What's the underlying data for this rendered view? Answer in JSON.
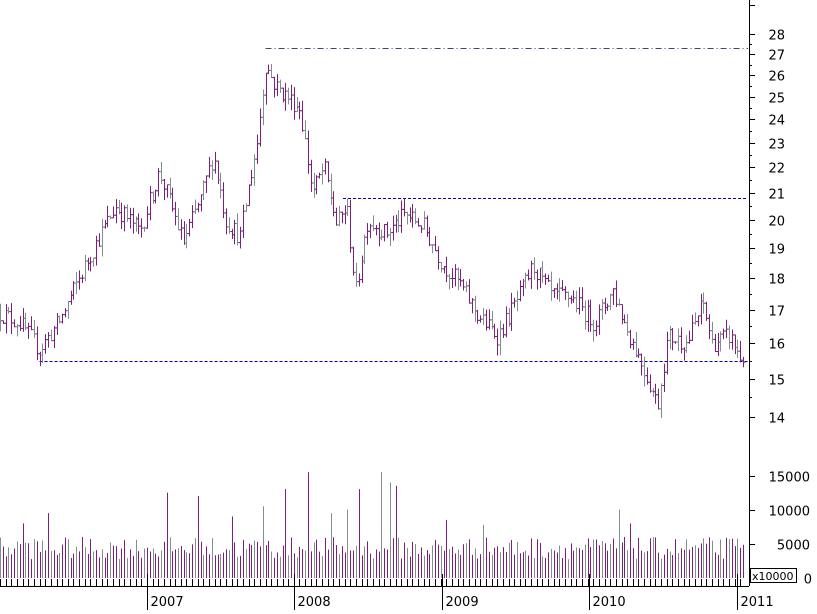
{
  "chart_data": [
    {
      "type": "ohlc",
      "scale": "log",
      "ylim": [
        13.3,
        29.8
      ],
      "y_ticks": [
        "14",
        "15",
        "16",
        "17",
        "18",
        "19",
        "20",
        "21",
        "22",
        "23",
        "24",
        "25",
        "26",
        "27",
        "28"
      ],
      "x_ticks": [
        "2007",
        "2008",
        "2009",
        "2010",
        "2011"
      ],
      "bar_colors": [
        "#7a1f7a",
        "#7f8f8f"
      ],
      "reference_lines": [
        {
          "value": 27.3,
          "from": "2007-10-22",
          "style": "dash-dot",
          "color": "#3a4a66"
        },
        {
          "value": 20.8,
          "from": "2008-05-01",
          "style": "dashed",
          "color": "#0000aa"
        },
        {
          "value": 15.5,
          "from": "2006-04-10",
          "style": "dashed",
          "color": "#0000aa"
        }
      ],
      "series": [
        {
          "date_start": "2006-01-02",
          "period": "weekly",
          "close_anchors": [
            [
              "2006-01-02",
              16.9
            ],
            [
              "2006-02-20",
              16.6
            ],
            [
              "2006-04-10",
              15.8
            ],
            [
              "2006-06-01",
              16.7
            ],
            [
              "2006-08-15",
              18.8
            ],
            [
              "2006-10-15",
              20.5
            ],
            [
              "2006-12-15",
              19.6
            ],
            [
              "2007-02-01",
              21.8
            ],
            [
              "2007-04-01",
              19.2
            ],
            [
              "2007-05-15",
              20.8
            ],
            [
              "2007-06-15",
              22.5
            ],
            [
              "2007-07-15",
              20.0
            ],
            [
              "2007-08-20",
              19.4
            ],
            [
              "2007-10-01",
              23.0
            ],
            [
              "2007-10-22",
              26.5
            ],
            [
              "2007-11-15",
              25.5
            ],
            [
              "2008-01-15",
              24.5
            ],
            [
              "2008-02-15",
              21.0
            ],
            [
              "2008-03-15",
              22.0
            ],
            [
              "2008-04-15",
              19.8
            ],
            [
              "2008-05-10",
              20.5
            ],
            [
              "2008-06-01",
              17.5
            ],
            [
              "2008-07-01",
              20.0
            ],
            [
              "2008-08-15",
              19.5
            ],
            [
              "2008-10-01",
              20.2
            ],
            [
              "2008-11-15",
              19.8
            ],
            [
              "2009-01-01",
              18.5
            ],
            [
              "2009-02-15",
              17.8
            ],
            [
              "2009-04-01",
              16.8
            ],
            [
              "2009-05-20",
              16.2
            ],
            [
              "2009-07-15",
              17.5
            ],
            [
              "2009-08-15",
              18.4
            ],
            [
              "2009-10-01",
              17.4
            ],
            [
              "2009-11-15",
              17.4
            ],
            [
              "2010-01-15",
              16.6
            ],
            [
              "2010-03-01",
              17.6
            ],
            [
              "2010-04-01",
              16.5
            ],
            [
              "2010-05-15",
              15.3
            ],
            [
              "2010-06-20",
              14.3
            ],
            [
              "2010-07-15",
              16.2
            ],
            [
              "2010-09-01",
              16.0
            ],
            [
              "2010-10-10",
              17.2
            ],
            [
              "2010-11-01",
              16.0
            ],
            [
              "2010-12-15",
              16.2
            ],
            [
              "2011-01-10",
              15.6
            ]
          ]
        }
      ]
    },
    {
      "type": "bar",
      "title": "",
      "ylim": [
        0,
        18000
      ],
      "y_ticks": [
        "0",
        "5000",
        "10000",
        "15000"
      ],
      "unit_label": "x10000",
      "x_ticks": [
        "2007",
        "2008",
        "2009",
        "2010",
        "2011"
      ],
      "bar_colors": [
        "#7a1f7a",
        "#7f8f8f"
      ],
      "series": [
        {
          "date_start": "2006-01-02",
          "period": "weekly",
          "typical": 5000,
          "spikes": [
            [
              "2006-03-01",
              8000
            ],
            [
              "2006-05-01",
              9500
            ],
            [
              "2007-02-20",
              12500
            ],
            [
              "2007-05-10",
              12000
            ],
            [
              "2007-08-01",
              9000
            ],
            [
              "2007-10-15",
              10500
            ],
            [
              "2007-12-10",
              13000
            ],
            [
              "2008-02-05",
              15500
            ],
            [
              "2008-04-01",
              9500
            ],
            [
              "2008-05-10",
              10000
            ],
            [
              "2008-06-10",
              13000
            ],
            [
              "2008-08-01",
              15500
            ],
            [
              "2008-08-25",
              14000
            ],
            [
              "2008-09-10",
              13500
            ],
            [
              "2009-01-15",
              8500
            ],
            [
              "2009-04-15",
              7800
            ],
            [
              "2010-03-15",
              10000
            ],
            [
              "2010-04-15",
              8000
            ]
          ]
        }
      ]
    }
  ]
}
